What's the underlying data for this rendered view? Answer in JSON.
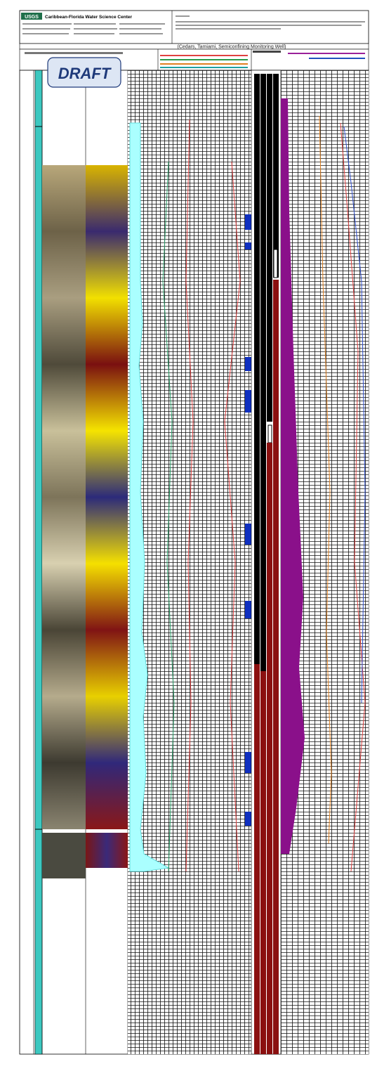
{
  "header": {
    "agency": "USGS",
    "center": "Caribbean-Florida Water Science Center",
    "title": "(Cedars, Tamiami, Semiconfining Monitoring Well)"
  },
  "stamp": "DRAFT"
}
